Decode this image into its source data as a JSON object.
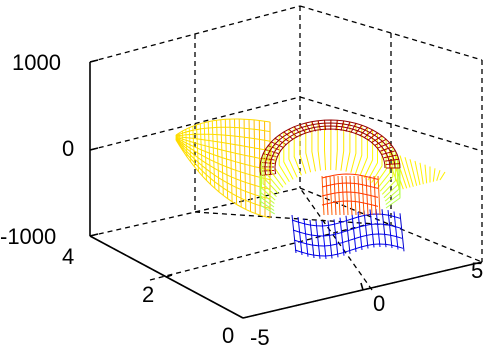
{
  "chart_data": {
    "type": "mesh3d",
    "z_ticks": [
      "1000",
      "0",
      "-1000"
    ],
    "y_ticks": [
      "4",
      "2",
      "0"
    ],
    "x_ticks": [
      "-5",
      "0",
      "5"
    ],
    "xlim": [
      -5,
      5
    ],
    "ylim": [
      0,
      4
    ],
    "zlim": [
      -1000,
      1000
    ],
    "grid": true,
    "colormap": "jet"
  }
}
